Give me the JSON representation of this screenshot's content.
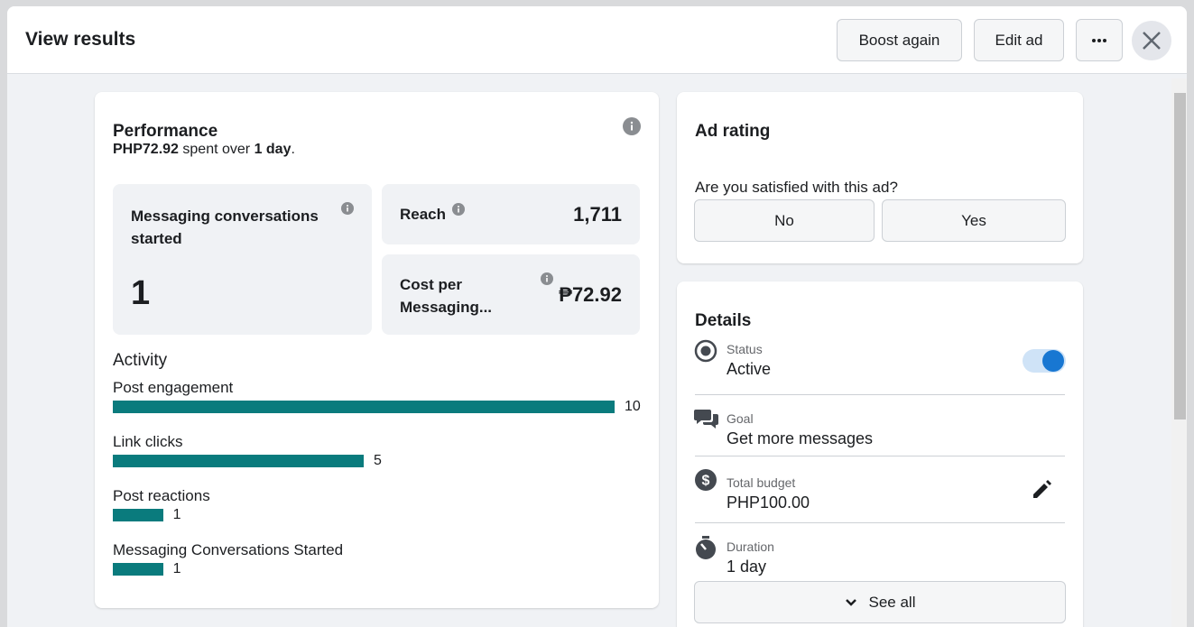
{
  "header": {
    "title": "View results",
    "buttons": [
      "Boost again",
      "Edit ad"
    ]
  },
  "performance": {
    "title": "Performance",
    "amount": "PHP72.92",
    "middle": "spent over",
    "duration": "1 day",
    "end": ".",
    "metrics": [
      {
        "label": "Messaging conversations started",
        "value": "1"
      },
      {
        "label": "Reach",
        "value": "1,711"
      },
      {
        "label": "Cost per Messaging...",
        "value": "₱72.92"
      }
    ]
  },
  "activity": {
    "title": "Activity",
    "color": "#0a7b7d",
    "items": [
      {
        "label": "Post engagement",
        "value": 10
      },
      {
        "label": "Link clicks",
        "value": 5
      },
      {
        "label": "Post reactions",
        "value": 1
      },
      {
        "label": "Messaging Conversations Started",
        "value": 1
      }
    ]
  },
  "ad_rating": {
    "title": "Ad rating",
    "question": "Are you satisfied with this ad?",
    "options": [
      "No",
      "Yes"
    ]
  },
  "details": {
    "title": "Details",
    "items": [
      {
        "label": "Status",
        "value": "Active"
      },
      {
        "label": "Goal",
        "value": "Get more messages"
      },
      {
        "label": "Total budget",
        "value": "PHP100.00"
      },
      {
        "label": "Duration",
        "value": "1 day"
      }
    ],
    "see_all": "See all"
  }
}
